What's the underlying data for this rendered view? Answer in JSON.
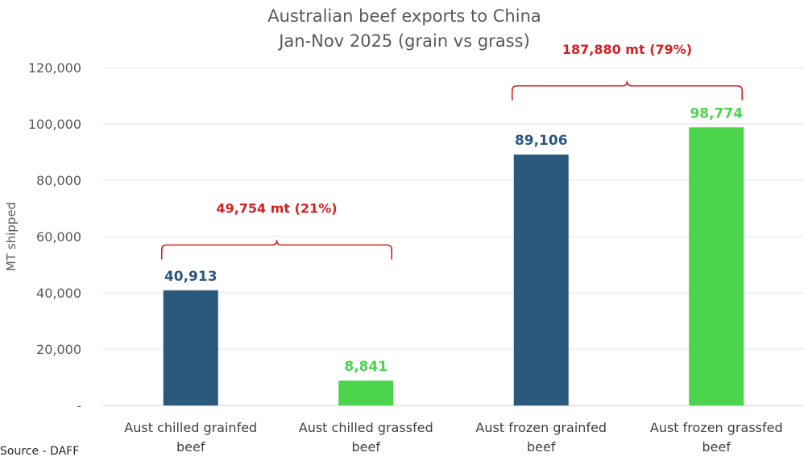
{
  "chart_data": {
    "type": "bar",
    "title": [
      "Australian beef exports to China",
      "Jan-Nov 2025 (grain vs grass)"
    ],
    "ylabel": "MT shipped",
    "xlabel": "",
    "ylim": [
      0,
      120000
    ],
    "yticks": [
      0,
      20000,
      40000,
      60000,
      80000,
      100000,
      120000
    ],
    "ytick_labels": [
      "-",
      "20,000",
      "40,000",
      "60,000",
      "80,000",
      "100,000",
      "120,000"
    ],
    "grid": true,
    "legend": "none",
    "categories": [
      [
        "Aust chilled grainfed",
        "beef"
      ],
      [
        "Aust chilled grassfed",
        "beef"
      ],
      [
        "Aust frozen grainfed",
        "beef"
      ],
      [
        "Aust frozen grassfed",
        "beef"
      ]
    ],
    "values": [
      40913,
      8841,
      89106,
      98774
    ],
    "value_labels": [
      "40,913",
      "8,841",
      "89,106",
      "98,774"
    ],
    "bar_colors": [
      "#2b587d",
      "#4cd44c",
      "#2b587d",
      "#4cd44c"
    ],
    "label_colors": [
      "#2b587d",
      "#4cd44c",
      "#2b587d",
      "#4cd44c"
    ],
    "annotations": [
      {
        "text": "49,754 mt (21%)",
        "spans": [
          0,
          1
        ],
        "level": 57000,
        "color": "#d42020"
      },
      {
        "text": "187,880 mt (79%)",
        "spans": [
          2,
          3
        ],
        "level": 113500,
        "color": "#d42020"
      }
    ]
  },
  "source": "Source - DAFF"
}
